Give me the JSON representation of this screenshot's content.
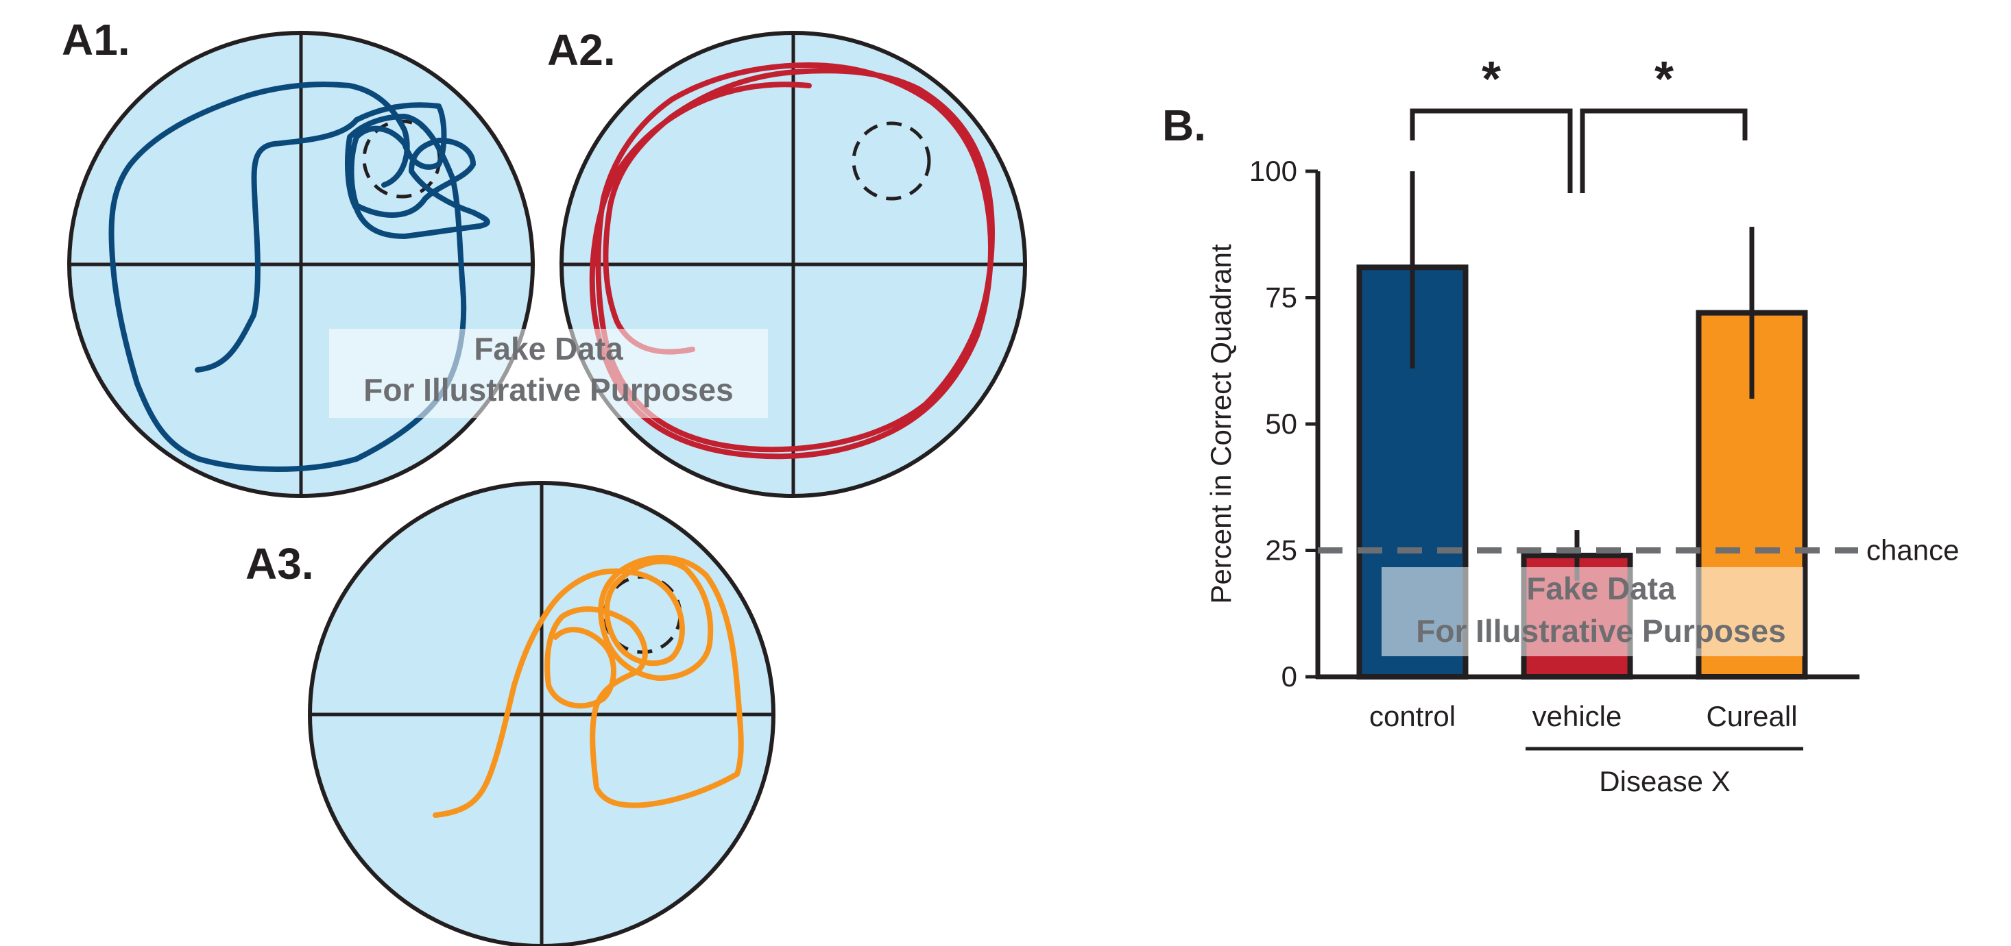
{
  "panels": {
    "a1": "A1.",
    "a2": "A2.",
    "a3": "A3.",
    "b": "B."
  },
  "colors": {
    "pool": "#c7e8f7",
    "control": "#0b497b",
    "vehicle": "#c3202f",
    "cureall": "#f7941d",
    "axis": "#231f20",
    "chance": "#6d6e71"
  },
  "watermark": {
    "line1": "Fake Data",
    "line2": "For Illustrative Purposes"
  },
  "chart_data": {
    "type": "bar",
    "categories": [
      "control",
      "vehicle",
      "Cureall"
    ],
    "values": [
      81,
      24,
      72
    ],
    "errors": [
      [
        61,
        100
      ],
      [
        19,
        29
      ],
      [
        55,
        89
      ]
    ],
    "ylabel": "Percent in Correct Quadrant",
    "ylim": [
      0,
      100
    ],
    "yticks": [
      0,
      25,
      50,
      75,
      100
    ],
    "chance_level": 25,
    "chance_label": "chance",
    "group_label": "Disease X",
    "group_members": [
      "vehicle",
      "Cureall"
    ],
    "significance": [
      {
        "pair": [
          "control",
          "vehicle"
        ],
        "label": "*"
      },
      {
        "pair": [
          "vehicle",
          "Cureall"
        ],
        "label": "*"
      }
    ]
  }
}
